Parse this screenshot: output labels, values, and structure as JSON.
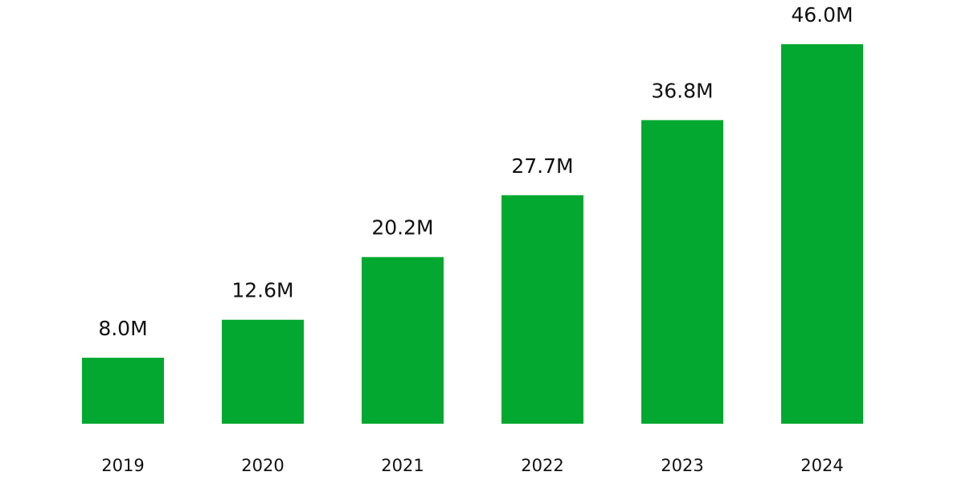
{
  "chart_data": {
    "type": "bar",
    "title": "",
    "xlabel": "",
    "ylabel": "",
    "categories": [
      "2019",
      "2020",
      "2021",
      "2022",
      "2023",
      "2024"
    ],
    "values": [
      8.0,
      12.6,
      20.2,
      27.7,
      36.8,
      46.0
    ],
    "value_labels": [
      "8.0M",
      "12.6M",
      "20.2M",
      "27.7M",
      "36.8M",
      "46.0M"
    ],
    "unit": "M",
    "ylim": [
      0,
      46.0
    ],
    "grid": false,
    "legend": "none",
    "bar_color": "#02A82F"
  }
}
